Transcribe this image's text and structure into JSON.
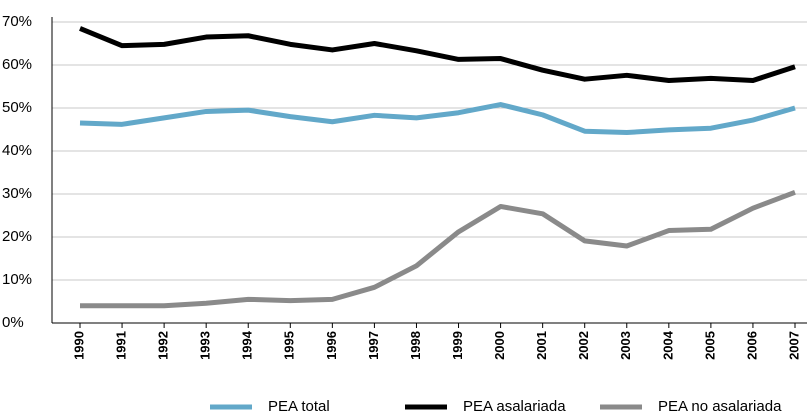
{
  "chart_data": {
    "type": "line",
    "categories": [
      "1990",
      "1991",
      "1992",
      "1993",
      "1994",
      "1995",
      "1996",
      "1997",
      "1998",
      "1999",
      "2000",
      "2001",
      "2002",
      "2003",
      "2004",
      "2005",
      "2006",
      "2007"
    ],
    "series": [
      {
        "name": "PEA total",
        "color": "#62a8c9",
        "values": [
          46.5,
          46.2,
          47.7,
          49.2,
          49.5,
          48,
          46.8,
          48.3,
          47.7,
          48.9,
          50.8,
          48.4,
          44.6,
          44.3,
          44.9,
          45.3,
          47.2,
          50
        ]
      },
      {
        "name": "PEA asalariada",
        "color": "#000000",
        "values": [
          68.5,
          64.5,
          64.8,
          66.5,
          66.8,
          64.8,
          63.5,
          65,
          63.3,
          61.3,
          61.5,
          58.8,
          56.7,
          57.6,
          56.4,
          56.9,
          56.4,
          59.6
        ]
      },
      {
        "name": "PEA no asalariada",
        "color": "#8a8a8a",
        "values": [
          4,
          4,
          4,
          4.6,
          5.5,
          5.2,
          5.5,
          8.3,
          13.3,
          21.2,
          27.1,
          25.4,
          19.1,
          17.9,
          21.5,
          21.8,
          26.7,
          30.4
        ]
      }
    ],
    "ylim": [
      0,
      70
    ],
    "yticks": [
      {
        "value": 0,
        "label": "0%"
      },
      {
        "value": 10,
        "label": "10%"
      },
      {
        "value": 20,
        "label": "20%"
      },
      {
        "value": 30,
        "label": "30%"
      },
      {
        "value": 40,
        "label": "40%"
      },
      {
        "value": 50,
        "label": "50%"
      },
      {
        "value": 60,
        "label": "60%"
      },
      {
        "value": 70,
        "label": "70%"
      }
    ],
    "grid": true,
    "legend": "bottom"
  }
}
